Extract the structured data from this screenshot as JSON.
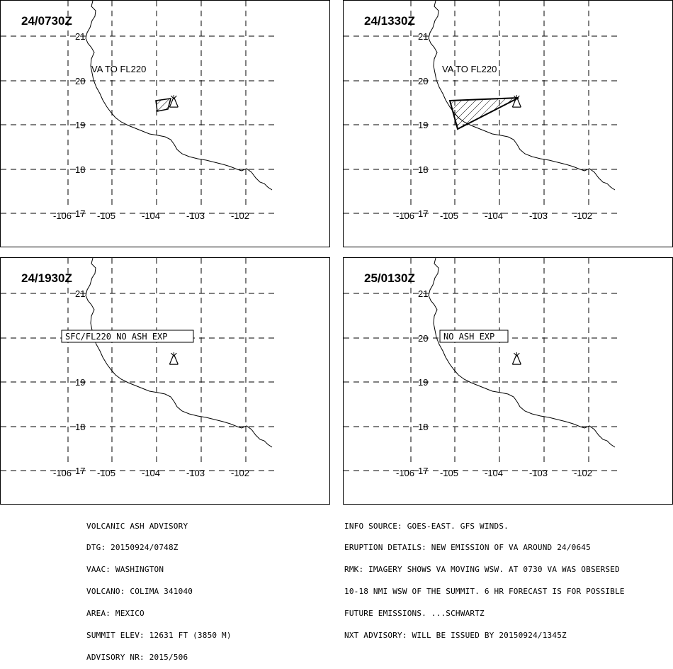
{
  "panels": [
    {
      "id": "p1",
      "time": "24/0730Z",
      "annotation": "VA TO FL220",
      "annotation_style": "plain",
      "ash": "small",
      "lat_labels": [
        "21",
        "20",
        "19",
        "18",
        "17"
      ],
      "lon_labels": [
        "-106",
        "-105",
        "-104",
        "-103",
        "-102"
      ]
    },
    {
      "id": "p2",
      "time": "24/1330Z",
      "annotation": "VA TO FL220",
      "annotation_style": "plain",
      "ash": "large",
      "lat_labels": [
        "21",
        "20",
        "19",
        "18",
        "17"
      ],
      "lon_labels": [
        "-106",
        "-105",
        "-104",
        "-103",
        "-102"
      ]
    },
    {
      "id": "p3",
      "time": "24/1930Z",
      "annotation": "SFC/FL220 NO ASH EXP",
      "annotation_style": "boxed",
      "ash": "none",
      "lat_labels": [
        "21",
        "20",
        "19",
        "18",
        "17"
      ],
      "lon_labels": [
        "-106",
        "-105",
        "-104",
        "-103",
        "-102"
      ]
    },
    {
      "id": "p4",
      "time": "25/0130Z",
      "annotation": "NO ASH EXP",
      "annotation_style": "boxed",
      "ash": "none",
      "lat_labels": [
        "21",
        "20",
        "19",
        "18",
        "17"
      ],
      "lon_labels": [
        "-106",
        "-105",
        "-104",
        "-103",
        "-102"
      ]
    }
  ],
  "volcano_position": {
    "lat": 19.51,
    "lon": -103.62
  },
  "advisory_left": [
    "VOLCANIC ASH ADVISORY",
    "DTG: 20150924/0748Z",
    "VAAC: WASHINGTON",
    "VOLCANO: COLIMA 341040",
    "AREA: MEXICO",
    "SUMMIT ELEV: 12631 FT (3850 M)",
    "ADVISORY NR: 2015/506"
  ],
  "advisory_right": [
    "INFO SOURCE: GOES-EAST. GFS WINDS.",
    "ERUPTION DETAILS: NEW EMISSION OF VA AROUND 24/0645",
    "RMK: IMAGERY SHOWS VA MOVING WSW. AT 0730 VA WAS OBSERSED",
    "10-18 NMI WSW OF THE SUMMIT. 6 HR FORECAST IS FOR POSSIBLE",
    "FUTURE EMISSIONS. ...SCHWARTZ",
    "NXT ADVISORY: WILL BE ISSUED BY 20150924/1345Z"
  ],
  "icons": {
    "volcano": "volcano-icon"
  }
}
